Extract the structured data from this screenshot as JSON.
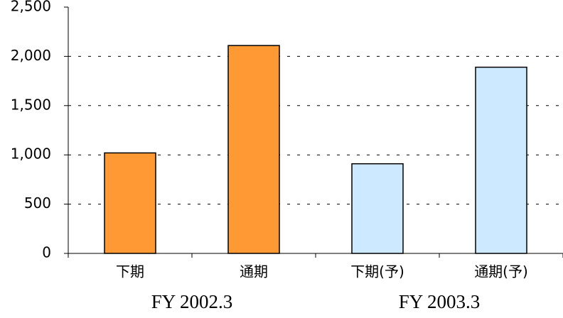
{
  "chart_data": {
    "type": "bar",
    "categories": [
      "下期",
      "通期",
      "下期(予)",
      "通期(予)"
    ],
    "values": [
      1020,
      2110,
      910,
      1890
    ],
    "colors": [
      "#ff9933",
      "#ff9933",
      "#cce9ff",
      "#cce9ff"
    ],
    "groups": [
      "FY 2002.3",
      "FY 2003.3"
    ],
    "ylim": [
      0,
      2500
    ],
    "yticks": [
      0,
      500,
      {
        "value": 1000,
        "label": "1,000"
      },
      {
        "value": 1500,
        "label": "1,500"
      },
      {
        "value": 2000,
        "label": "2,000"
      },
      {
        "value": 2500,
        "label": "2,500"
      }
    ],
    "grid": true
  }
}
